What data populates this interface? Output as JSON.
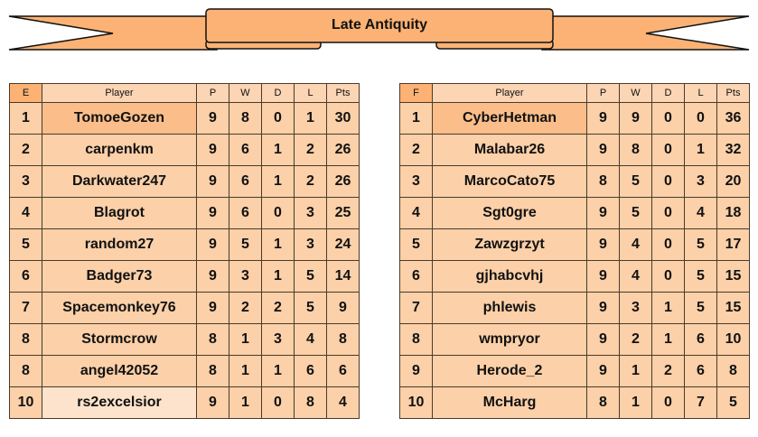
{
  "title": "Late Antiquity",
  "colors": {
    "banner": "#fbb274",
    "cell": "#fcd0a8",
    "highlight": "#fbbe8a",
    "light": "#fde3cb"
  },
  "headers": [
    "Player",
    "P",
    "W",
    "D",
    "L",
    "Pts"
  ],
  "tables": [
    {
      "group": "E",
      "rows": [
        [
          "1",
          "TomoeGozen",
          "9",
          "8",
          "0",
          "1",
          "30"
        ],
        [
          "2",
          "carpenkm",
          "9",
          "6",
          "1",
          "2",
          "26"
        ],
        [
          "3",
          "Darkwater247",
          "9",
          "6",
          "1",
          "2",
          "26"
        ],
        [
          "4",
          "Blagrot",
          "9",
          "6",
          "0",
          "3",
          "25"
        ],
        [
          "5",
          "random27",
          "9",
          "5",
          "1",
          "3",
          "24"
        ],
        [
          "6",
          "Badger73",
          "9",
          "3",
          "1",
          "5",
          "14"
        ],
        [
          "7",
          "Spacemonkey76",
          "9",
          "2",
          "2",
          "5",
          "9"
        ],
        [
          "8",
          "Stormcrow",
          "8",
          "1",
          "3",
          "4",
          "8"
        ],
        [
          "8",
          "angel42052",
          "8",
          "1",
          "1",
          "6",
          "6"
        ],
        [
          "10",
          "rs2excelsior",
          "9",
          "1",
          "0",
          "8",
          "4"
        ]
      ]
    },
    {
      "group": "F",
      "rows": [
        [
          "1",
          "CyberHetman",
          "9",
          "9",
          "0",
          "0",
          "36"
        ],
        [
          "2",
          "Malabar26",
          "9",
          "8",
          "0",
          "1",
          "32"
        ],
        [
          "3",
          "MarcoCato75",
          "8",
          "5",
          "0",
          "3",
          "20"
        ],
        [
          "4",
          "Sgt0gre",
          "9",
          "5",
          "0",
          "4",
          "18"
        ],
        [
          "5",
          "Zawzgrzyt",
          "9",
          "4",
          "0",
          "5",
          "17"
        ],
        [
          "6",
          "gjhabcvhj",
          "9",
          "4",
          "0",
          "5",
          "15"
        ],
        [
          "7",
          "phlewis",
          "9",
          "3",
          "1",
          "5",
          "15"
        ],
        [
          "8",
          "wmpryor",
          "9",
          "2",
          "1",
          "6",
          "10"
        ],
        [
          "9",
          "Herode_2",
          "9",
          "1",
          "2",
          "6",
          "8"
        ],
        [
          "10",
          "McHarg",
          "8",
          "1",
          "0",
          "7",
          "5"
        ]
      ]
    }
  ]
}
